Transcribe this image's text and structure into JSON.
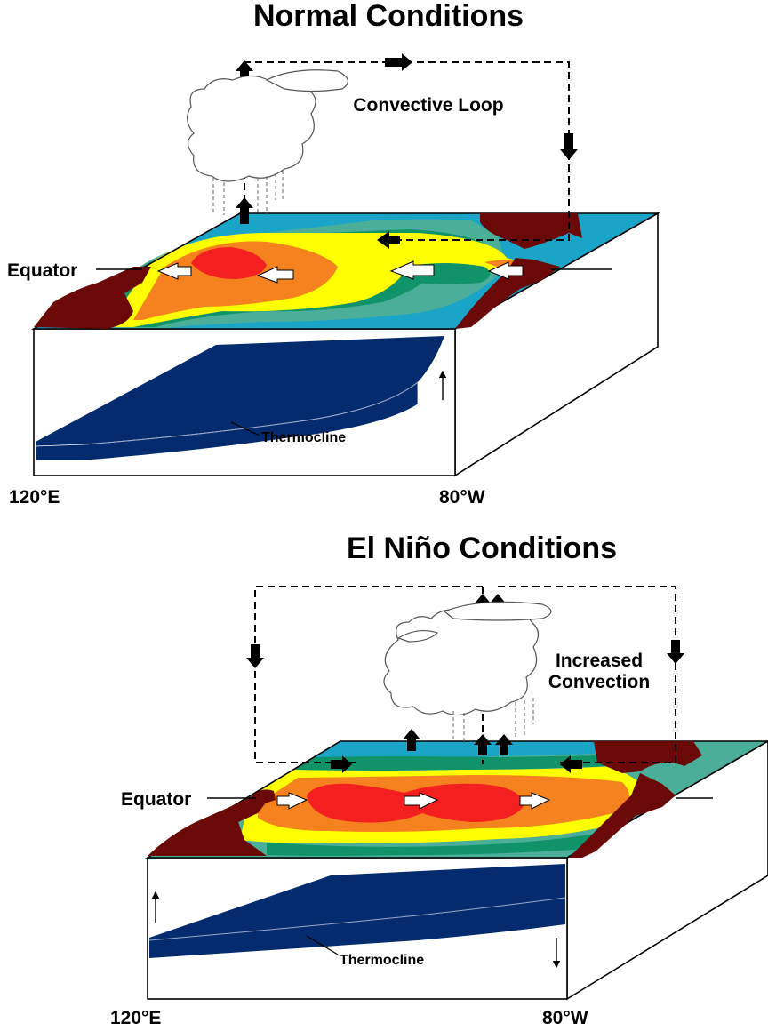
{
  "normal": {
    "title": "Normal Conditions",
    "loop_label": "Convective Loop",
    "equator_label": "Equator",
    "thermocline_label": "Thermocline",
    "west_label": "120°E",
    "east_label": "80°W"
  },
  "elnino": {
    "title": "El Niño Conditions",
    "convection_label_line1": "Increased",
    "convection_label_line2": "Convection",
    "equator_label": "Equator",
    "thermocline_label": "Thermocline",
    "west_label": "120°E",
    "east_label": "80°W"
  },
  "colors": {
    "warmest": "#f42020",
    "warm": "#f6821f",
    "mild": "#ffff00",
    "cool": "#4aae99",
    "cooler": "#11936a",
    "coldest": "#1aa4c8",
    "land": "#6b0808",
    "thermocline": "#032b6e"
  }
}
